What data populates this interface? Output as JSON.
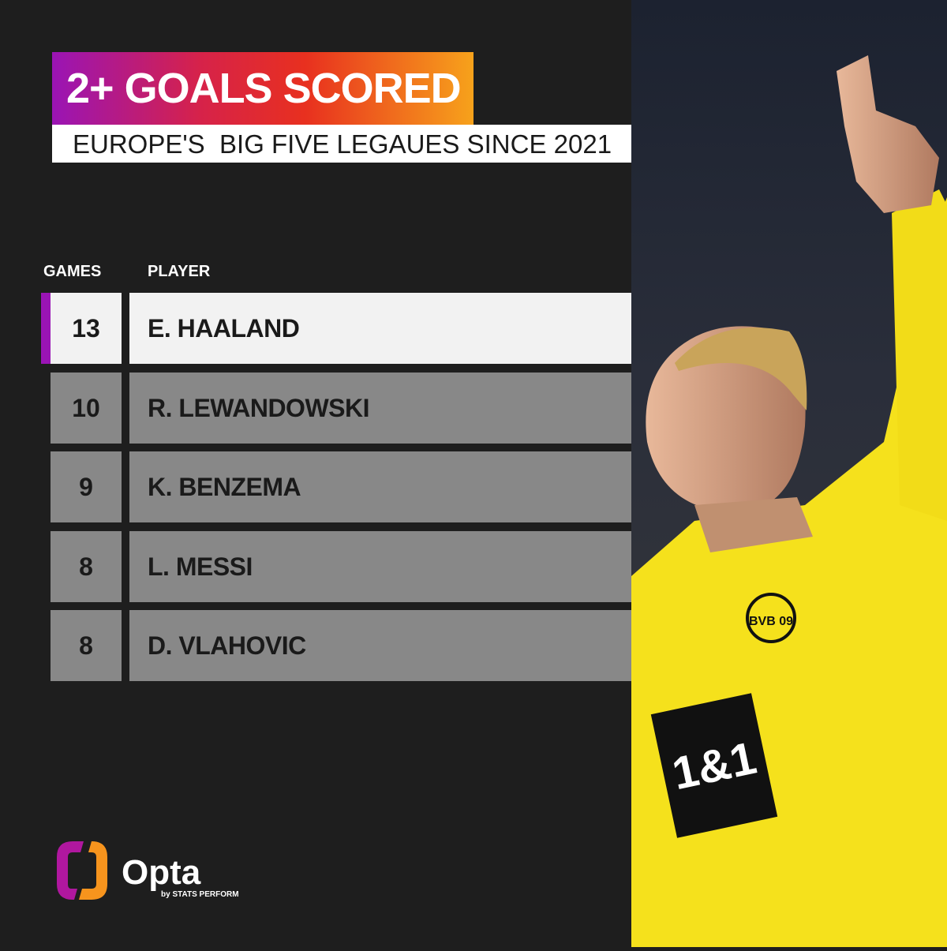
{
  "title": "2+ GOALS SCORED",
  "subtitle": "EUROPE'S  BIG FIVE LEGAUES SINCE 2021",
  "headers": {
    "games": "GAMES",
    "player": "PLAYER"
  },
  "rows": [
    {
      "games": "13",
      "player": "E. HAALAND"
    },
    {
      "games": "10",
      "player": "R. LEWANDOWSKI"
    },
    {
      "games": "9",
      "player": "K. BENZEMA"
    },
    {
      "games": "8",
      "player": "L. MESSI"
    },
    {
      "games": "8",
      "player": "D. VLAHOVIC"
    }
  ],
  "logo": {
    "name": "Opta",
    "tagline": "by STATS PERFORM"
  },
  "photo": {
    "sponsor": "1&1",
    "crest": "BVB 09"
  },
  "colors": {
    "gradient": [
      "#9a14b5",
      "#e8301f",
      "#f7a21b"
    ],
    "highlight": "#f2f2f2",
    "row": "#888888",
    "jersey": "#f5e11c"
  }
}
